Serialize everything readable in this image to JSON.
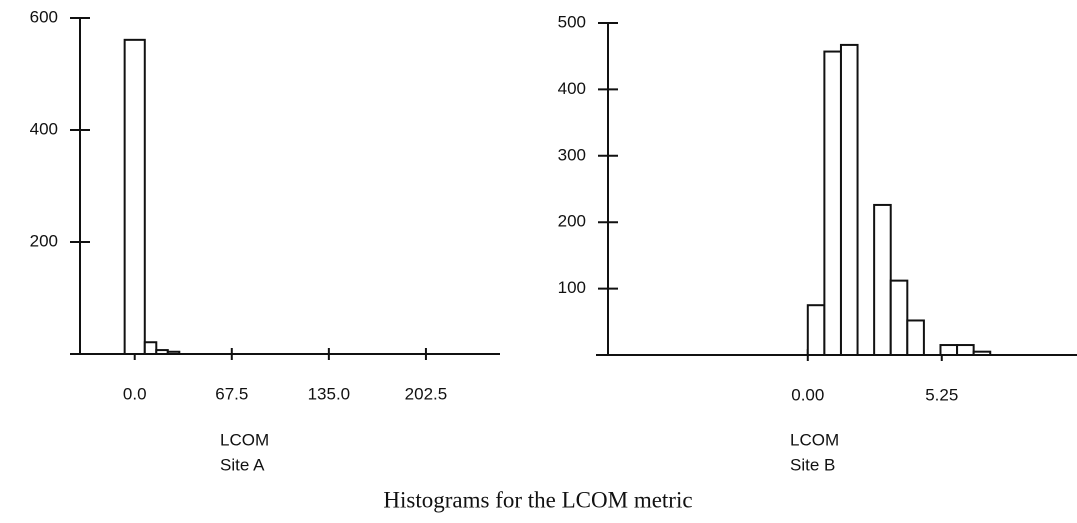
{
  "caption": "Histograms for the LCOM metric",
  "chart_data": [
    {
      "type": "histogram",
      "xlabel": "LCOM",
      "site": "Site A",
      "color": "#ffffff",
      "bins": [
        -7,
        7,
        15,
        23,
        31
      ],
      "values": [
        561,
        21,
        7,
        4
      ],
      "xlim": [
        -45,
        254
      ],
      "ylim": [
        0,
        600
      ],
      "xticks": [
        {
          "value": 0,
          "label": "0.0"
        },
        67.5,
        {
          "value": 135,
          "label": "135.0"
        },
        202.5
      ],
      "yticks": [
        200,
        400,
        600
      ]
    },
    {
      "type": "histogram",
      "xlabel": "LCOM",
      "site": "Site B",
      "color": "#ffffff",
      "bins": [
        0,
        0.65,
        1.3,
        1.95,
        2.6,
        3.25,
        3.9,
        4.55,
        5.2,
        5.85,
        6.5,
        7.15
      ],
      "values": [
        75,
        457,
        467,
        0,
        226,
        112,
        52,
        0,
        15,
        15,
        5
      ],
      "xlim": [
        -8.3,
        10.55
      ],
      "ylim": [
        0,
        500
      ],
      "xticks": [
        {
          "value": 0,
          "label": "0.00"
        },
        5.25
      ],
      "yticks": [
        100,
        200,
        300,
        400,
        500
      ]
    }
  ]
}
